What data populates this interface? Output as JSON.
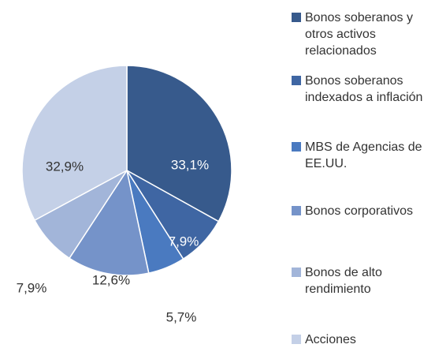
{
  "chart_data": {
    "type": "pie",
    "categories": [
      "Bonos soberanos y otros activos relacionados",
      "Bonos soberanos indexados a inflación",
      "MBS de Agencias de EE.UU.",
      "Bonos corporativos",
      "Bonos de alto rendimiento",
      "Acciones"
    ],
    "values": [
      33.1,
      7.9,
      5.7,
      12.6,
      7.9,
      32.9
    ],
    "value_labels": [
      "33,1%",
      "7,9%",
      "5,7%",
      "12,6%",
      "7,9%",
      "32,9%"
    ],
    "colors": [
      "#375a8c",
      "#3f66a3",
      "#4a7ac0",
      "#7593c9",
      "#a2b5d9",
      "#c4d0e7"
    ]
  }
}
